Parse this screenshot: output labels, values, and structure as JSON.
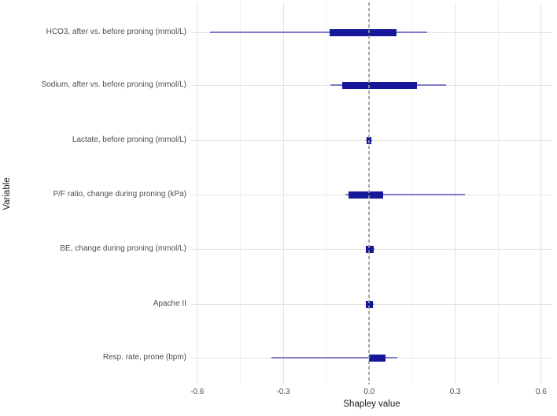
{
  "figure": {
    "background": "#ffffff"
  },
  "colors": {
    "box_fill": "#17179a",
    "whisker": "#7c7cc9",
    "grid_major": "#e3e3e3",
    "grid_minor": "#efefef",
    "reference_line": "#9a9a9a",
    "tick_text": "#4d4d4d",
    "axis_title_text": "#1a1a1a"
  },
  "chart_data": {
    "type": "boxplot",
    "orientation": "horizontal",
    "title": "",
    "xlabel": "Shapley value",
    "ylabel": "Variable",
    "xlim": [
      -0.62,
      0.64
    ],
    "x_ticks": [
      -0.6,
      -0.3,
      0.0,
      0.3,
      0.6
    ],
    "x_tick_labels": [
      "-0.6",
      "-0.3",
      "0.0",
      "0.3",
      "0.6"
    ],
    "x_minor_ticks": [
      -0.45,
      -0.15,
      0.15,
      0.45
    ],
    "grid": "on",
    "legend": "none",
    "reference_line_x": 0.0,
    "reference_line_style": "dashed",
    "categories": [
      "HCO3, after vs. before proning (mmol/L)",
      "Sodium, after vs. before proning (mmol/L)",
      "Lactate, before proning (mmol/L)",
      "P/F ratio, change during proning (kPa)",
      "BE, change during proning (mmol/L)",
      "Apache II",
      "Resp. rate, prone (bpm)"
    ],
    "boxes": [
      {
        "label": "HCO3, after vs. before proning (mmol/L)",
        "whisker_low": -0.555,
        "q1": -0.137,
        "q3": 0.094,
        "whisker_high": 0.202
      },
      {
        "label": "Sodium, after vs. before proning (mmol/L)",
        "whisker_low": -0.135,
        "q1": -0.093,
        "q3": 0.166,
        "whisker_high": 0.268
      },
      {
        "label": "Lactate, before proning (mmol/L)",
        "whisker_low": -0.012,
        "q1": -0.01,
        "q3": 0.008,
        "whisker_high": 0.01
      },
      {
        "label": "P/F ratio, change during proning (kPa)",
        "whisker_low": -0.082,
        "q1": -0.071,
        "q3": 0.049,
        "whisker_high": 0.335
      },
      {
        "label": "BE, change during proning (mmol/L)",
        "whisker_low": -0.013,
        "q1": -0.011,
        "q3": 0.016,
        "whisker_high": 0.018
      },
      {
        "label": "Apache II",
        "whisker_low": -0.013,
        "q1": -0.011,
        "q3": 0.014,
        "whisker_high": 0.016
      },
      {
        "label": "Resp. rate, prone (bpm)",
        "whisker_low": -0.34,
        "q1": 0.0,
        "q3": 0.058,
        "whisker_high": 0.099
      }
    ]
  }
}
